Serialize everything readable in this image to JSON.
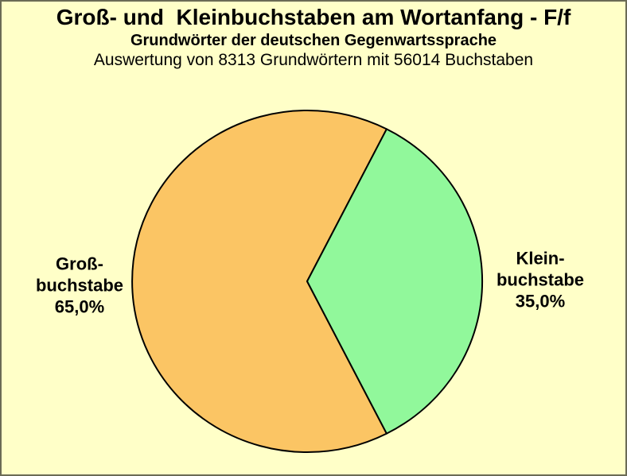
{
  "page": {
    "background_color": "#FFFFC8",
    "border_color": "#6B6B55"
  },
  "chart_data": {
    "type": "pie",
    "title": "Groß- und  Kleinbuchstaben am Wortanfang - F/f",
    "subtitle": "Grundwörter der deutschen Gegenwartssprache",
    "note": "Auswertung von 8313 Grundwörtern mit 56014 Buchstaben",
    "categories": [
      "Großbuchstabe",
      "Kleinbuchstabe"
    ],
    "values": [
      65.0,
      35.0
    ],
    "slices": [
      {
        "label": "Großbuchstabe",
        "value": 65.0,
        "display": "65,0%",
        "color": "#FBC564"
      },
      {
        "label": "Kleinbuchstabe",
        "value": 35.0,
        "display": "35,0%",
        "color": "#91F89B"
      }
    ],
    "start_angle_deg": 63,
    "direction": "ccw",
    "outline_color": "#000000",
    "legend": "none",
    "labels_position": "sides",
    "background_color": "#FFFFC8"
  },
  "pie_labels": {
    "left": {
      "lines": [
        "Groß-",
        "buchstabe",
        "65,0%"
      ]
    },
    "right": {
      "lines": [
        "Klein-",
        "buchstabe",
        "35,0%"
      ]
    }
  }
}
